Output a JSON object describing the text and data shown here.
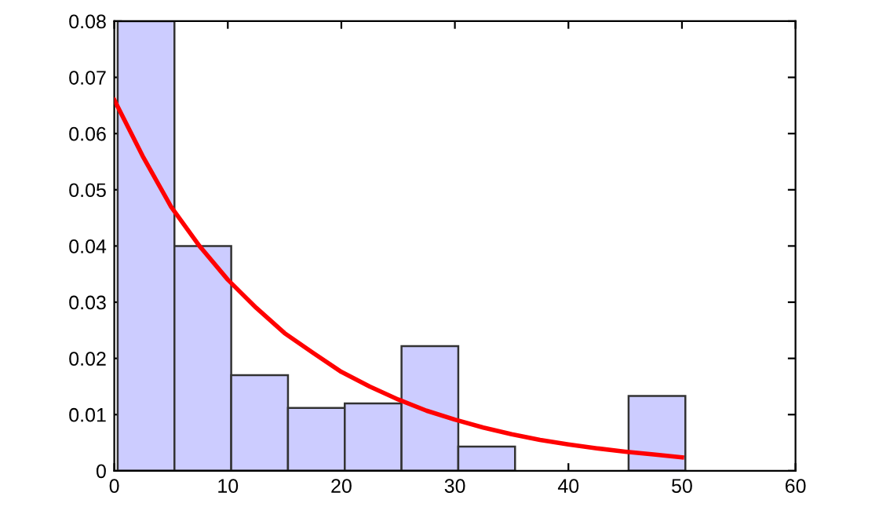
{
  "chart_data": {
    "type": "histogram",
    "bins": [
      0.3,
      5.3,
      10.3,
      15.3,
      20.3,
      25.3,
      30.3,
      35.3,
      40.3,
      45.3,
      50.3
    ],
    "values": [
      0.08,
      0.04,
      0.017,
      0.0112,
      0.012,
      0.0222,
      0.0043,
      0,
      0,
      0.0133
    ],
    "color": "#ccccff",
    "series": [
      {
        "type": "line",
        "color": "#ff0000",
        "x": [
          0,
          2.5,
          5,
          7.5,
          10,
          12.5,
          15,
          17.5,
          20,
          22.5,
          25,
          27.5,
          30,
          32.5,
          35,
          37.5,
          40,
          42.5,
          45,
          47.5,
          50
        ],
        "values": [
          0.066,
          0.056,
          0.047,
          0.04,
          0.034,
          0.029,
          0.0245,
          0.021,
          0.0176,
          0.015,
          0.0127,
          0.0107,
          0.0091,
          0.0077,
          0.0065,
          0.0055,
          0.0047,
          0.004,
          0.0034,
          0.0029,
          0.0024
        ]
      }
    ],
    "xlim": [
      0,
      60
    ],
    "xticks": [
      0,
      10,
      20,
      30,
      40,
      50,
      60
    ],
    "ylim": [
      0,
      0.08
    ],
    "yticks": [
      0,
      0.01,
      0.02,
      0.03,
      0.04,
      0.05,
      0.06,
      0.07,
      0.08
    ],
    "grid": false,
    "legend": false
  }
}
